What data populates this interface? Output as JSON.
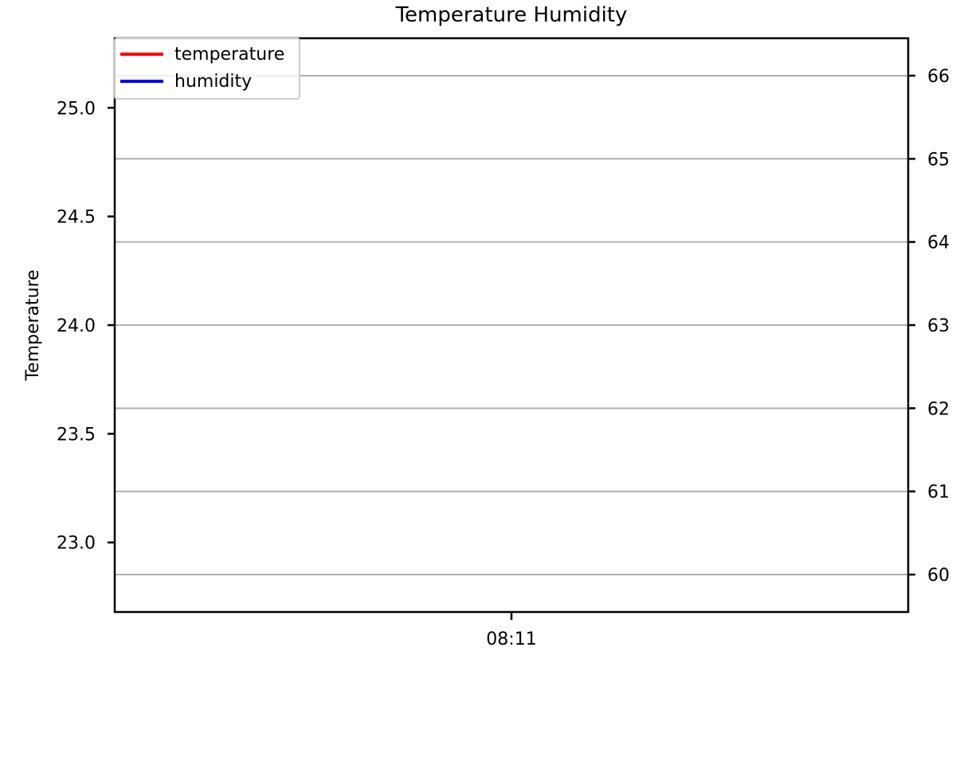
{
  "chart_data": {
    "type": "line",
    "title": "Temperature Humidity",
    "xlabel": "",
    "ylabel": "Temperature",
    "y2label": "",
    "x_ticks": [
      "08:11"
    ],
    "y_ticks": [
      "23.0",
      "23.5",
      "24.0",
      "24.5",
      "25.0"
    ],
    "y2_ticks": [
      "60",
      "61",
      "62",
      "63",
      "64",
      "65",
      "66"
    ],
    "ylim": [
      22.68,
      25.32
    ],
    "y2lim": [
      59.55,
      66.45
    ],
    "grid": "horizontal lines on humidity axis ticks",
    "legend_position": "top-left",
    "series": [
      {
        "name": "temperature",
        "color": "#ff0000",
        "axis": "left",
        "x": [],
        "values": []
      },
      {
        "name": "humidity",
        "color": "#0000ff",
        "axis": "right",
        "x": [],
        "values": []
      }
    ]
  }
}
